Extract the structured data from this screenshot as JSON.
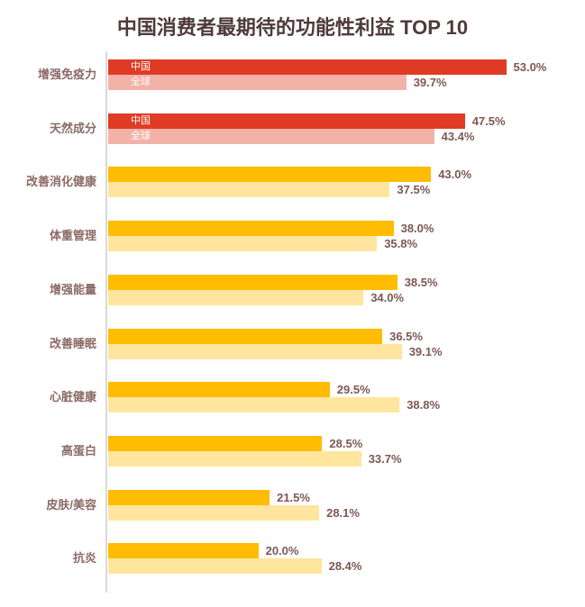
{
  "title": "中国消费者最期待的功能性利益 TOP 10",
  "legend": {
    "china_label": "中国",
    "global_label": "全球"
  },
  "colors": {
    "china_red": "#E03B25",
    "global_pink": "#F3B2A8",
    "china_orange": "#FFBC00",
    "global_yellow": "#FFE59D",
    "title_text": "#4E3B3B",
    "category_text": "#8A6A66",
    "value_text": "#7C5852",
    "axis_line": "#D9D9D9",
    "inbar_text": "#FFFFFF",
    "background": "#FFFFFF"
  },
  "chart_data": {
    "type": "bar",
    "orientation": "horizontal",
    "title": "中国消费者最期待的功能性利益 TOP 10",
    "categories": [
      "增强免疫力",
      "天然成分",
      "改善消化健康",
      "体重管理",
      "增强能量",
      "改善睡眠",
      "心脏健康",
      "高蛋白",
      "皮肤/美容",
      "抗炎"
    ],
    "series": [
      {
        "name": "中国",
        "values": [
          53.0,
          47.5,
          43.0,
          38.0,
          38.5,
          36.5,
          29.5,
          28.5,
          21.5,
          20.0
        ]
      },
      {
        "name": "全球",
        "values": [
          39.7,
          43.4,
          37.5,
          35.8,
          34.0,
          39.1,
          38.8,
          33.7,
          28.1,
          28.4
        ]
      }
    ],
    "value_suffix": "%",
    "value_decimals": 1,
    "highlight_rows": [
      0,
      1
    ],
    "inbar_series_labels_on_rows": [
      0,
      1
    ],
    "xlim": [
      0,
      63.5
    ],
    "grid": false,
    "legend_position": "inside-first-bars"
  }
}
